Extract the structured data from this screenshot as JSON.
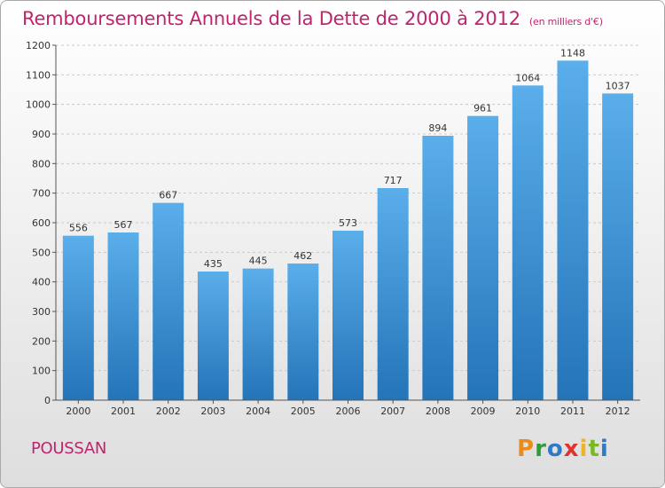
{
  "header": {
    "title": "Remboursements Annuels de la Dette de 2000 à 2012",
    "unit": "(en milliers d'€)"
  },
  "footer": {
    "commune": "POUSSAN",
    "logo": "Proxiti",
    "logo_letters": [
      "P",
      "r",
      "o",
      "x",
      "i",
      "t",
      "i"
    ]
  },
  "colors": {
    "title": "#c0246e",
    "bar_top": "#5aaeea",
    "bar_bottom": "#2474b8",
    "grid": "#c8c8c8"
  },
  "chart_data": {
    "type": "bar",
    "title": "Remboursements Annuels de la Dette de 2000 à 2012",
    "subtitle": "(en milliers d'€)",
    "categories": [
      "2000",
      "2001",
      "2002",
      "2003",
      "2004",
      "2005",
      "2006",
      "2007",
      "2008",
      "2009",
      "2010",
      "2011",
      "2012"
    ],
    "values": [
      556,
      567,
      667,
      435,
      445,
      462,
      573,
      717,
      894,
      961,
      1064,
      1148,
      1037
    ],
    "ylim": [
      0,
      1200
    ],
    "yticks": [
      0,
      100,
      200,
      300,
      400,
      500,
      600,
      700,
      800,
      900,
      1000,
      1100,
      1200
    ],
    "grid": "horizontal dashed",
    "data_labels": true
  }
}
